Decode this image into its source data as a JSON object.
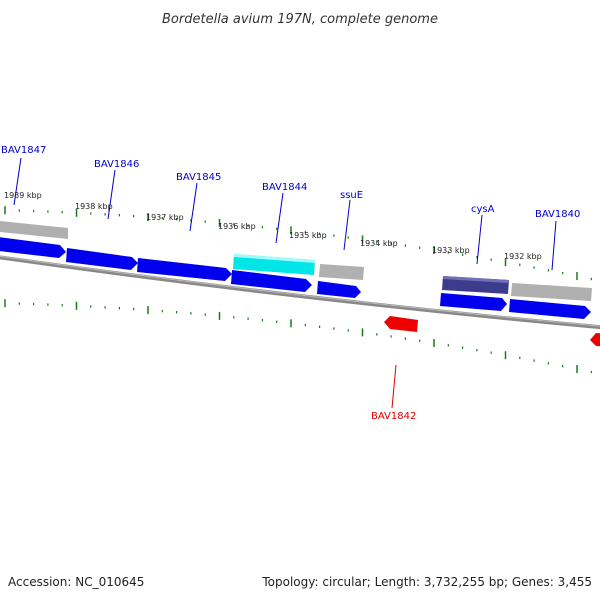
{
  "title": "Bordetella avium 197N, complete genome",
  "footer": {
    "accession": "Accession: NC_010645",
    "summary": "Topology: circular; Length: 3,732,255 bp; Genes: 3,455"
  },
  "colors": {
    "forward_gene": "#0000ee",
    "reverse_gene": "#ee0000",
    "highlight_gene": "#00e5e5",
    "named_gene": "#3c3c8c",
    "other_feature": "#b0b0b0",
    "backbone": "#888888",
    "tick": "#1a7a1a",
    "label_forward": "#0000cc",
    "label_reverse": "#dd0000"
  },
  "kbp_labels": [
    "1939 kbp",
    "1938 kbp",
    "1937 kbp",
    "1936 kbp",
    "1935 kbp",
    "1934 kbp",
    "1933 kbp",
    "1932 kbp"
  ],
  "gene_labels": [
    {
      "text": "BAV1847",
      "strand": "forward"
    },
    {
      "text": "BAV1846",
      "strand": "forward"
    },
    {
      "text": "BAV1845",
      "strand": "forward"
    },
    {
      "text": "BAV1844",
      "strand": "forward"
    },
    {
      "text": "ssuE",
      "strand": "forward"
    },
    {
      "text": "cysA",
      "strand": "forward"
    },
    {
      "text": "BAV1840",
      "strand": "forward"
    },
    {
      "text": "BAV1842",
      "strand": "reverse"
    }
  ]
}
